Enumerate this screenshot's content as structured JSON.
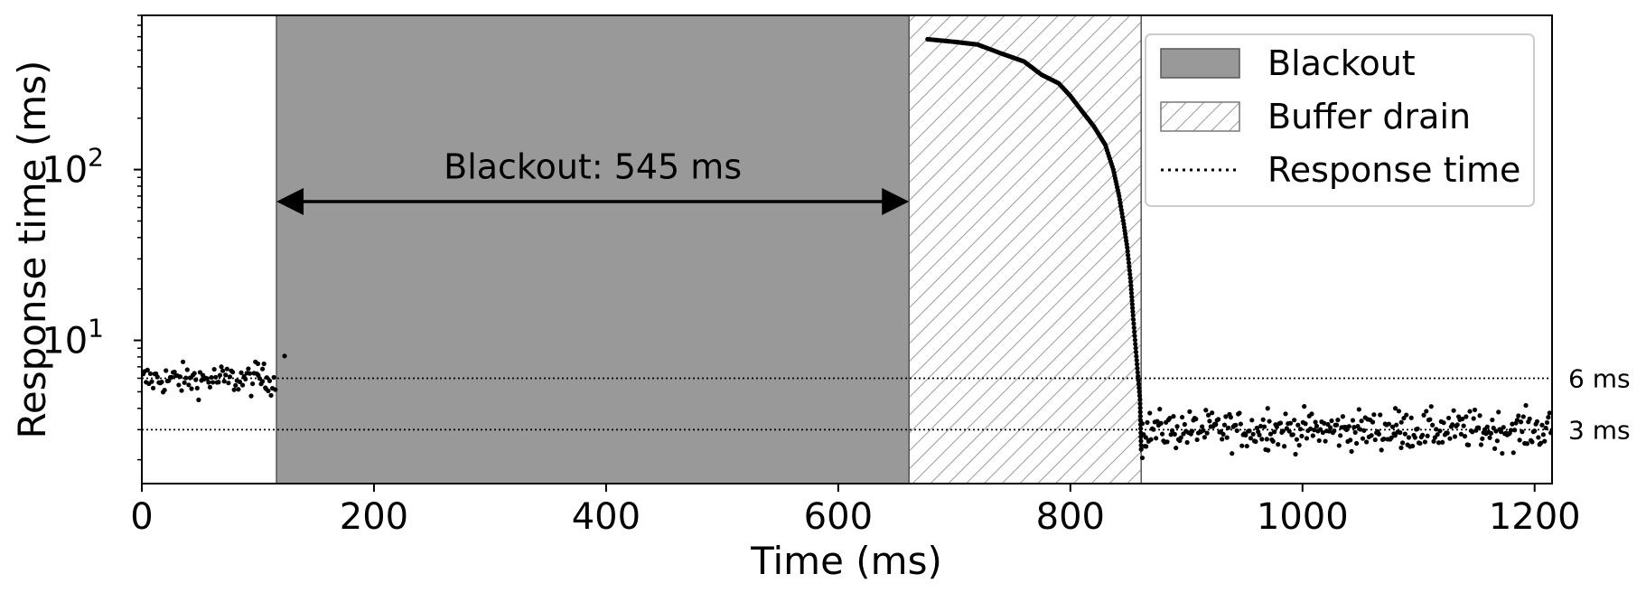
{
  "chart_data": {
    "type": "scatter",
    "xlabel": "Time (ms)",
    "ylabel": "Response time (ms)",
    "xlim": [
      0,
      1215
    ],
    "ylim": [
      1.45,
      800
    ],
    "y_scale": "log",
    "grid": false,
    "x_ticks": [
      0,
      200,
      400,
      600,
      800,
      1000,
      1200
    ],
    "x_tick_labels": [
      "0",
      "200",
      "400",
      "600",
      "800",
      "1000",
      "1200"
    ],
    "y_ticks": [
      {
        "value": 10,
        "base": "10",
        "exp": "1"
      },
      {
        "value": 100,
        "base": "10",
        "exp": "2"
      }
    ],
    "regions": [
      {
        "name": "Blackout",
        "x0": 116,
        "x1": 661,
        "color": "#999999"
      },
      {
        "name": "Buffer drain",
        "x0": 661,
        "x1": 861,
        "hatch": true
      }
    ],
    "reference_lines": [
      {
        "y": 6,
        "label": "6 ms"
      },
      {
        "y": 3,
        "label": "3 ms"
      }
    ],
    "annotation": {
      "text": "Blackout: 545 ms",
      "x0": 116,
      "x1": 661,
      "y": 65,
      "text_y": 105
    },
    "legend": {
      "placement": "top-right",
      "entries": [
        {
          "label": "Blackout",
          "kind": "solid"
        },
        {
          "label": "Buffer drain",
          "kind": "hatch"
        },
        {
          "label": "Response time",
          "kind": "dotted"
        }
      ]
    },
    "series": [
      {
        "name": "Response time",
        "pre_blackout": {
          "x_start": 0,
          "x_end": 115,
          "n": 95,
          "level": 5.9,
          "spread": 0.045
        },
        "pre_outliers": [
          [
            100,
            7.3
          ],
          [
            104,
            6.8
          ],
          [
            107,
            5.2
          ],
          [
            123,
            8.1
          ]
        ],
        "drain_curve": [
          [
            677,
            580
          ],
          [
            700,
            560
          ],
          [
            720,
            540
          ],
          [
            740,
            480
          ],
          [
            760,
            430
          ],
          [
            775,
            360
          ],
          [
            790,
            320
          ],
          [
            800,
            270
          ],
          [
            810,
            220
          ],
          [
            820,
            180
          ],
          [
            830,
            140
          ],
          [
            837,
            100
          ],
          [
            842,
            70
          ],
          [
            846,
            48
          ],
          [
            849,
            35
          ],
          [
            852,
            22
          ],
          [
            854,
            14
          ],
          [
            856,
            9.5
          ],
          [
            858,
            6.5
          ],
          [
            860,
            4.5
          ],
          [
            861,
            2.3
          ]
        ],
        "post_drain": {
          "x_start": 862,
          "x_end": 1215,
          "n": 330,
          "level": 3.0,
          "spread": 0.055
        },
        "post_outliers": [
          [
            865,
            2.7
          ],
          [
            862,
            2.05
          ],
          [
            868,
            2.6
          ],
          [
            1085,
            2.35
          ],
          [
            1080,
            4.0
          ],
          [
            970,
            4.0
          ]
        ]
      }
    ]
  }
}
